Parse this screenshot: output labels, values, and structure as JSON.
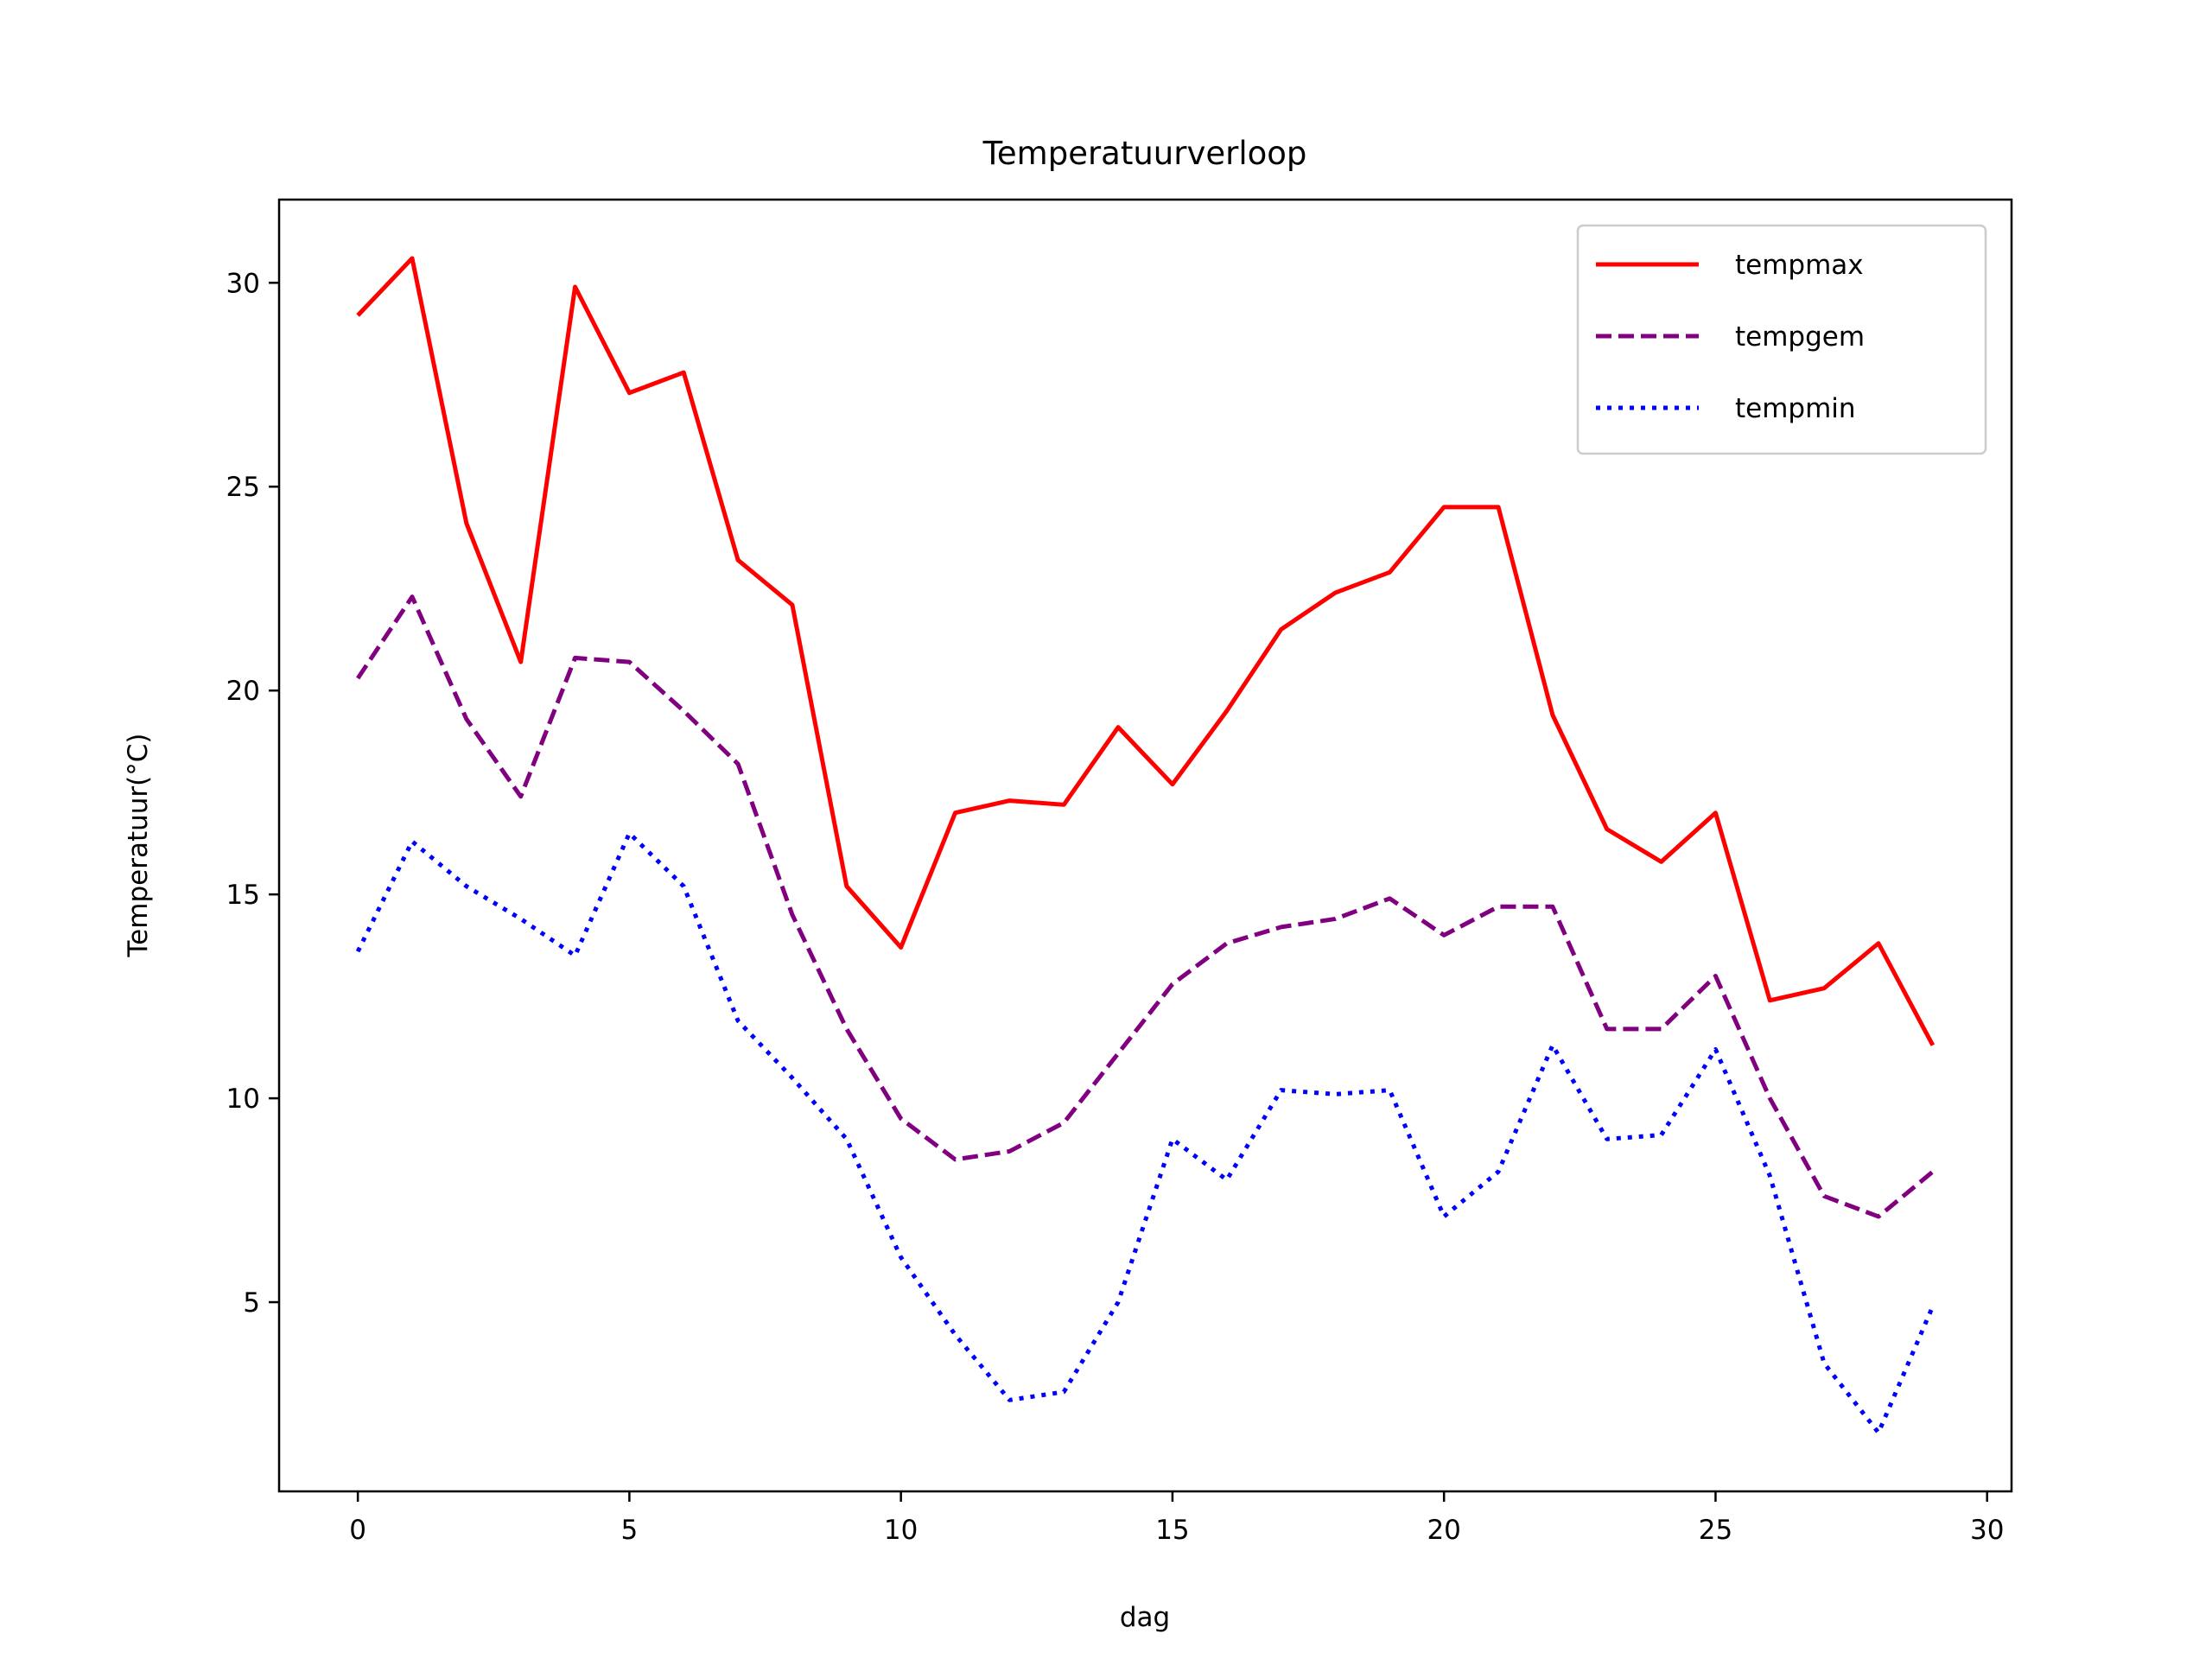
{
  "chart_data": {
    "type": "line",
    "title": "Temperatuurverloop",
    "xlabel": "dag",
    "ylabel": "Temperatuur(°C)",
    "xlim": [
      -1.45,
      30.45
    ],
    "ylim": [
      0.36,
      32.04
    ],
    "xticks": [
      0,
      5,
      10,
      15,
      20,
      25,
      30
    ],
    "yticks": [
      5,
      10,
      15,
      20,
      25,
      30
    ],
    "grid": false,
    "legend_position": "top-right",
    "x": [
      0,
      1,
      2,
      3,
      4,
      5,
      6,
      7,
      8,
      9,
      10,
      11,
      12,
      13,
      14,
      15,
      16,
      17,
      18,
      19,
      20,
      21,
      22,
      23,
      24,
      25,
      26,
      27,
      28,
      29
    ],
    "series": [
      {
        "name": "tempmax",
        "color": "#ff0000",
        "style": "solid",
        "values": [
          29.2,
          30.6,
          24.1,
          20.7,
          29.9,
          27.3,
          27.8,
          23.2,
          22.1,
          15.2,
          13.7,
          17.0,
          17.3,
          17.2,
          19.1,
          17.7,
          19.5,
          21.5,
          22.4,
          22.9,
          24.5,
          24.5,
          19.4,
          16.6,
          15.8,
          17.0,
          12.4,
          12.7,
          13.8,
          11.3
        ]
      },
      {
        "name": "tempgem",
        "color": "#800080",
        "style": "dashed",
        "values": [
          20.3,
          22.3,
          19.3,
          17.4,
          20.8,
          20.7,
          19.5,
          18.2,
          14.5,
          11.7,
          9.5,
          8.5,
          8.7,
          9.4,
          11.1,
          12.8,
          13.8,
          14.2,
          14.4,
          14.9,
          14.0,
          14.7,
          14.7,
          11.7,
          11.7,
          13.0,
          10.0,
          7.6,
          7.1,
          8.2
        ]
      },
      {
        "name": "tempmin",
        "color": "#0000ff",
        "style": "dotted",
        "values": [
          13.6,
          16.3,
          15.2,
          14.4,
          13.5,
          16.5,
          15.2,
          11.9,
          10.5,
          9.0,
          6.1,
          4.2,
          2.6,
          2.8,
          5.0,
          9.0,
          8.0,
          10.2,
          10.1,
          10.2,
          7.1,
          8.2,
          11.3,
          9.0,
          9.1,
          11.2,
          8.1,
          3.5,
          1.8,
          4.9
        ]
      }
    ]
  }
}
